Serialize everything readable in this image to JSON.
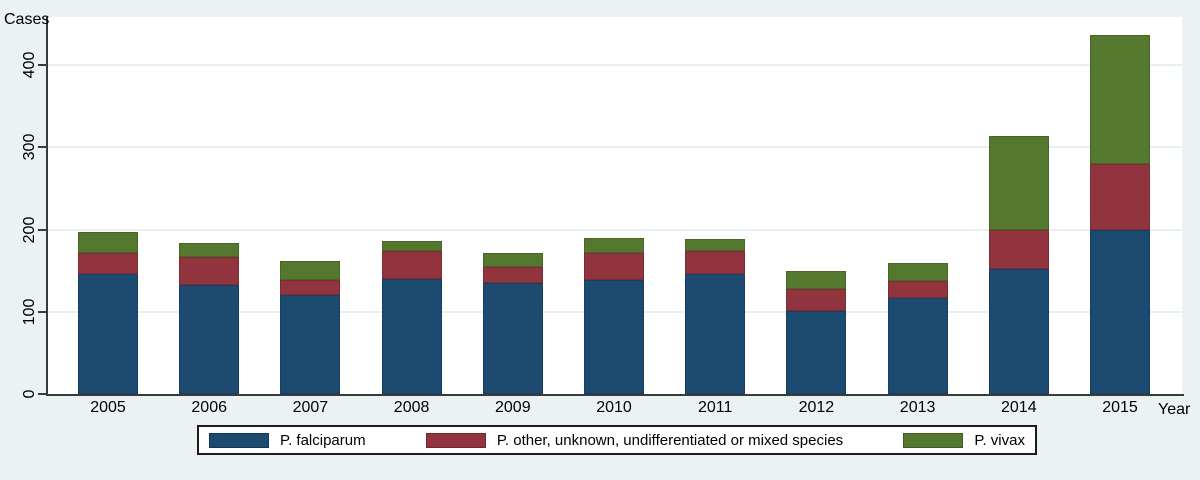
{
  "figure": {
    "background_color": "#eaf2f3",
    "plot_background_color": "#ffffff",
    "gridline_color": "#e6eff1",
    "axis_color": "#3a3a3a",
    "y_axis_title": "Cases",
    "x_axis_title": "Year"
  },
  "chart_data": {
    "type": "bar",
    "stacked": true,
    "title": "",
    "xlabel": "Year",
    "ylabel": "Cases",
    "categories": [
      "2005",
      "2006",
      "2007",
      "2008",
      "2009",
      "2010",
      "2011",
      "2012",
      "2013",
      "2014",
      "2015"
    ],
    "series": [
      {
        "name": "P. falciparum",
        "color": "#1d4a70",
        "values": [
          146,
          132,
          121,
          140,
          135,
          139,
          146,
          101,
          117,
          152,
          199
        ]
      },
      {
        "name": "P. other, unknown, undifferentiated or mixed species",
        "color": "#92343d",
        "values": [
          25,
          34,
          18,
          34,
          19,
          32,
          28,
          27,
          20,
          48,
          81
        ]
      },
      {
        "name": "P. vivax",
        "color": "#54782e",
        "values": [
          26,
          17,
          23,
          12,
          17,
          19,
          14,
          21,
          23,
          114,
          157
        ]
      }
    ],
    "stack_totals": [
      197,
      183,
      162,
      186,
      171,
      190,
      188,
      149,
      160,
      314,
      437
    ],
    "yticks": [
      0,
      100,
      200,
      300,
      400
    ],
    "ylim": [
      0,
      458
    ],
    "grid": true,
    "legend_position": "bottom-center"
  }
}
